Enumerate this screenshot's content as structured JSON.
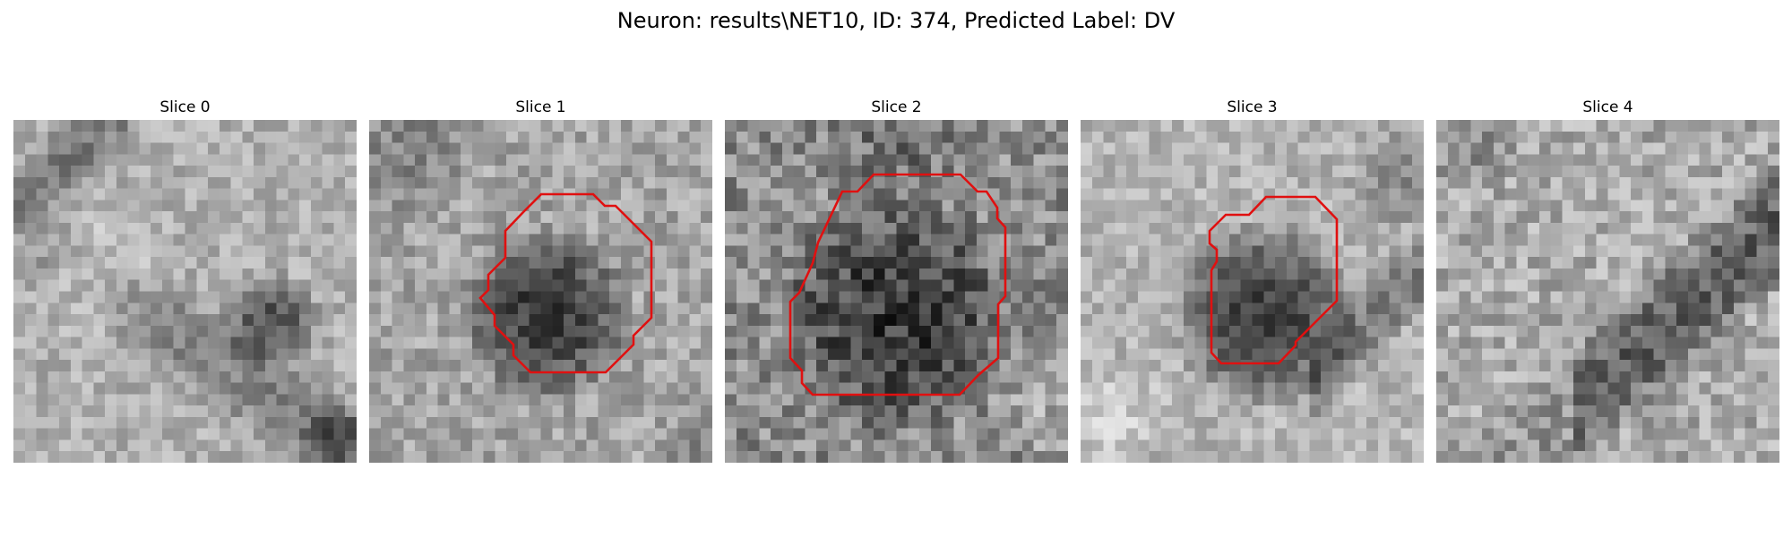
{
  "figure": {
    "title": "Neuron: results\\NET10, ID: 374, Predicted Label: DV"
  },
  "style": {
    "contour_color": "#e01010"
  },
  "slices": [
    {
      "title": "Slice 0",
      "has_contour": false
    },
    {
      "title": "Slice 1",
      "has_contour": true
    },
    {
      "title": "Slice 2",
      "has_contour": true
    },
    {
      "title": "Slice 3",
      "has_contour": true
    },
    {
      "title": "Slice 4",
      "has_contour": false
    }
  ]
}
